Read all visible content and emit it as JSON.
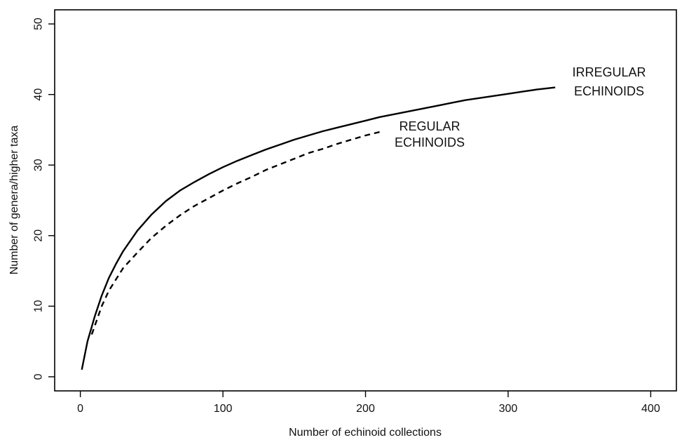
{
  "chart_data": {
    "type": "line",
    "title": "",
    "xlabel": "Number of echinoid collections",
    "ylabel": "Number of genera/higher taxa",
    "xlim": [
      -18,
      418
    ],
    "ylim": [
      -2,
      52
    ],
    "xticks": [
      0,
      100,
      200,
      300,
      400
    ],
    "yticks": [
      0,
      10,
      20,
      30,
      40,
      50
    ],
    "grid": false,
    "legend": "none",
    "series": [
      {
        "key": "irregular",
        "style": "solid",
        "color": "#000000",
        "x": [
          1,
          5,
          10,
          15,
          20,
          25,
          30,
          40,
          50,
          60,
          70,
          80,
          90,
          100,
          110,
          120,
          130,
          140,
          150,
          160,
          170,
          180,
          190,
          200,
          210,
          220,
          230,
          240,
          250,
          260,
          270,
          280,
          290,
          300,
          310,
          320,
          333
        ],
        "y": [
          1,
          5,
          8.5,
          11.5,
          14,
          16,
          17.8,
          20.7,
          23,
          24.9,
          26.4,
          27.6,
          28.7,
          29.7,
          30.6,
          31.4,
          32.2,
          32.9,
          33.6,
          34.2,
          34.8,
          35.3,
          35.8,
          36.3,
          36.8,
          37.2,
          37.6,
          38.0,
          38.4,
          38.8,
          39.2,
          39.5,
          39.8,
          40.1,
          40.4,
          40.7,
          41
        ]
      },
      {
        "key": "regular",
        "style": "dashed",
        "color": "#000000",
        "x": [
          8,
          15,
          20,
          30,
          40,
          50,
          60,
          70,
          80,
          90,
          100,
          110,
          120,
          130,
          140,
          150,
          160,
          170,
          180,
          190,
          200,
          212
        ],
        "y": [
          6,
          10,
          12.2,
          15.4,
          17.6,
          19.7,
          21.4,
          22.9,
          24.2,
          25.3,
          26.4,
          27.4,
          28.3,
          29.3,
          30.1,
          30.9,
          31.7,
          32.3,
          33.0,
          33.6,
          34.2,
          34.8
        ]
      }
    ],
    "annotations": [
      {
        "key": "irregular_label",
        "lines": [
          "IRREGULAR",
          "ECHINOIDS"
        ]
      },
      {
        "key": "regular_label",
        "lines": [
          "REGULAR",
          "ECHINOIDS"
        ]
      }
    ]
  }
}
